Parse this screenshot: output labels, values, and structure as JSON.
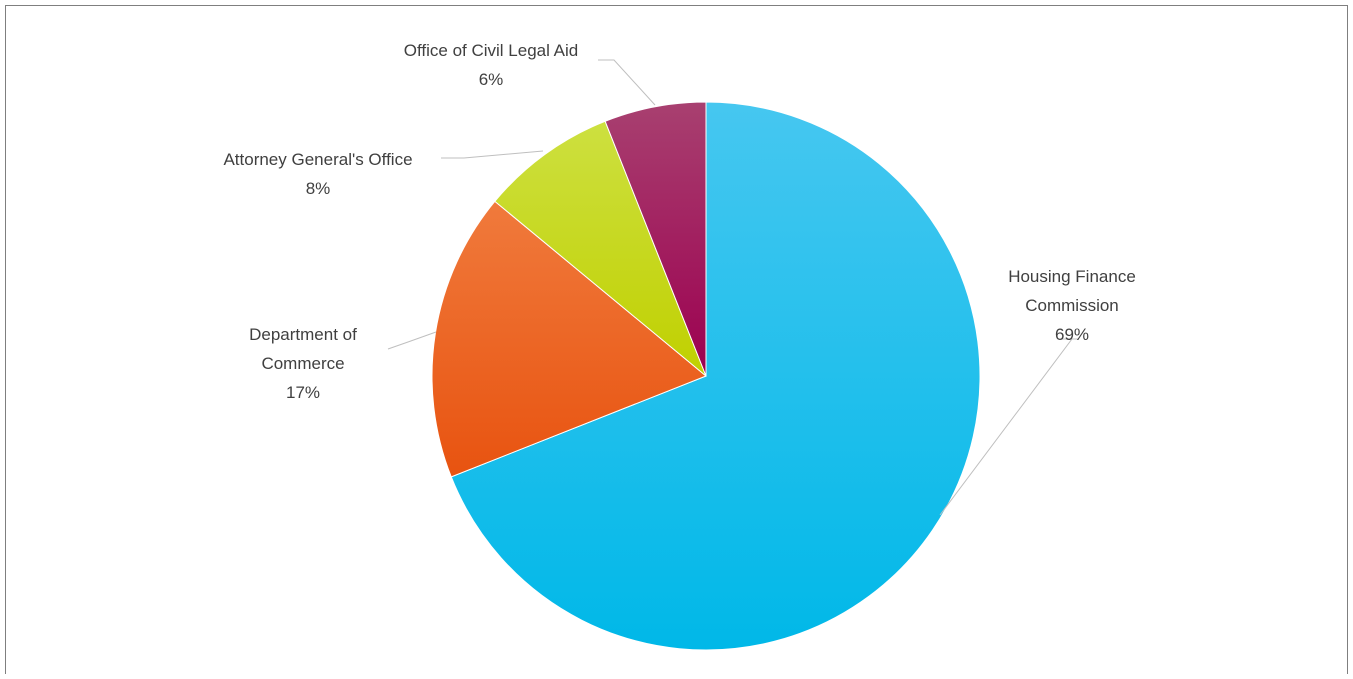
{
  "chart_data": {
    "type": "pie",
    "title": "",
    "slices": [
      {
        "label_lines": [
          "Housing Finance",
          "Commission"
        ],
        "pct_label": "69%",
        "value": 69,
        "color": "#00b8e8",
        "color_light": "#46c7f0"
      },
      {
        "label_lines": [
          "Department of",
          "Commerce"
        ],
        "pct_label": "17%",
        "value": 17,
        "color": "#e85310",
        "color_light": "#f07a3c"
      },
      {
        "label_lines": [
          "Attorney General's Office"
        ],
        "pct_label": "8%",
        "value": 8,
        "color": "#c0d000",
        "color_light": "#cde040"
      },
      {
        "label_lines": [
          "Office of Civil Legal Aid"
        ],
        "pct_label": "6%",
        "value": 6,
        "color": "#9c0050",
        "color_light": "#a84070"
      }
    ]
  }
}
